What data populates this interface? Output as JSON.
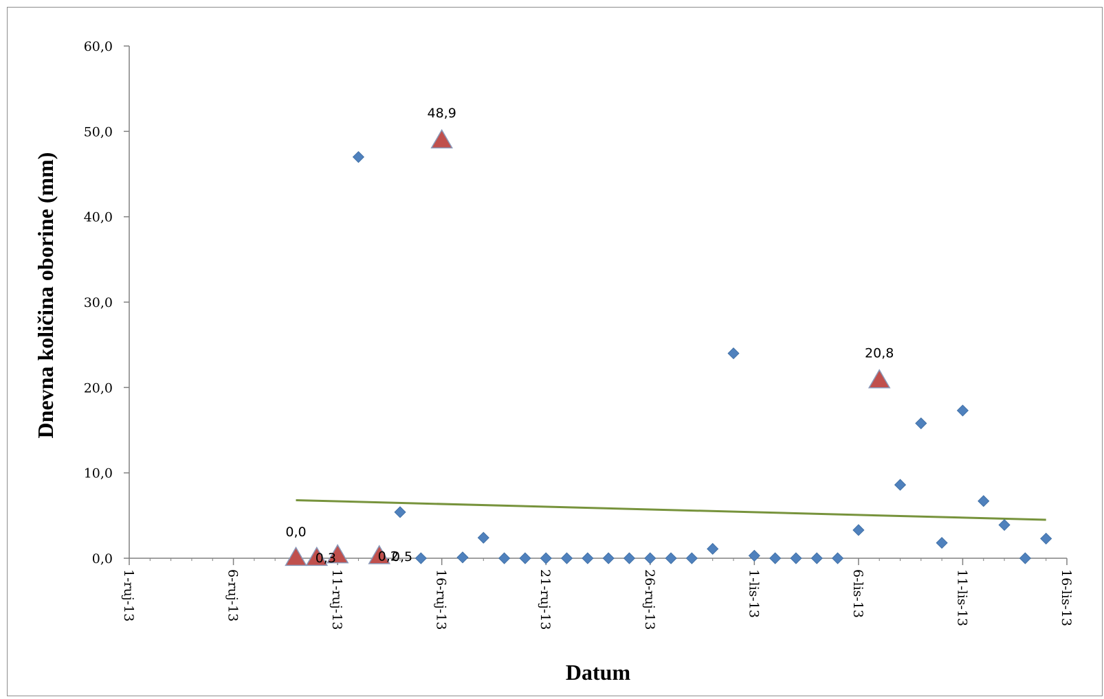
{
  "chart_data": {
    "type": "scatter",
    "xlabel": "Datum",
    "ylabel": "Dnevna količina oborine (mm)",
    "ylim": [
      0,
      60
    ],
    "yticks": [
      "0,0",
      "10,0",
      "20,0",
      "30,0",
      "40,0",
      "50,0",
      "60,0"
    ],
    "xlim": [
      "2013-09-01",
      "2013-10-16"
    ],
    "xticks": [
      {
        "date": "2013-09-01",
        "label": "1-ruj-13"
      },
      {
        "date": "2013-09-06",
        "label": "6-ruj-13"
      },
      {
        "date": "2013-09-11",
        "label": "11-ruj-13"
      },
      {
        "date": "2013-09-16",
        "label": "16-ruj-13"
      },
      {
        "date": "2013-09-21",
        "label": "21-ruj-13"
      },
      {
        "date": "2013-09-26",
        "label": "26-ruj-13"
      },
      {
        "date": "2013-10-01",
        "label": "1-lis-13"
      },
      {
        "date": "2013-10-06",
        "label": "6-lis-13"
      },
      {
        "date": "2013-10-11",
        "label": "11-lis-13"
      },
      {
        "date": "2013-10-16",
        "label": "16-lis-13"
      }
    ],
    "grid": false,
    "legend": "none",
    "series": [
      {
        "marker": "diamond",
        "color": "#4f81bd",
        "points": [
          [
            "2013-09-10",
            0.0
          ],
          [
            "2013-09-12",
            47.0
          ],
          [
            "2013-09-14",
            5.4
          ],
          [
            "2013-09-15",
            0.0
          ],
          [
            "2013-09-17",
            0.1
          ],
          [
            "2013-09-18",
            2.4
          ],
          [
            "2013-09-19",
            0.0
          ],
          [
            "2013-09-20",
            0.0
          ],
          [
            "2013-09-21",
            0.0
          ],
          [
            "2013-09-22",
            0.0
          ],
          [
            "2013-09-23",
            0.0
          ],
          [
            "2013-09-24",
            0.0
          ],
          [
            "2013-09-25",
            0.0
          ],
          [
            "2013-09-26",
            0.0
          ],
          [
            "2013-09-27",
            0.0
          ],
          [
            "2013-09-28",
            0.0
          ],
          [
            "2013-09-29",
            1.1
          ],
          [
            "2013-09-30",
            24.0
          ],
          [
            "2013-10-01",
            0.3
          ],
          [
            "2013-10-02",
            0.0
          ],
          [
            "2013-10-03",
            0.0
          ],
          [
            "2013-10-04",
            0.0
          ],
          [
            "2013-10-05",
            0.0
          ],
          [
            "2013-10-06",
            3.3
          ],
          [
            "2013-10-08",
            8.6
          ],
          [
            "2013-10-09",
            15.8
          ],
          [
            "2013-10-10",
            1.8
          ],
          [
            "2013-10-11",
            17.3
          ],
          [
            "2013-10-12",
            6.7
          ],
          [
            "2013-10-13",
            3.9
          ],
          [
            "2013-10-14",
            0.0
          ],
          [
            "2013-10-15",
            2.3
          ]
        ]
      },
      {
        "marker": "triangle",
        "color": "#c0504d",
        "points": [
          [
            "2013-09-09",
            0.0
          ],
          [
            "2013-09-10",
            0.0
          ],
          [
            "2013-09-11",
            0.3
          ],
          [
            "2013-09-13",
            0.2
          ],
          [
            "2013-09-16",
            48.9
          ],
          [
            "2013-10-07",
            20.8
          ]
        ]
      }
    ],
    "annotations": [
      {
        "text": "0,0",
        "x": "2013-09-09",
        "y": 0.0,
        "anchor": "above"
      },
      {
        "text": "0,3",
        "x": "2013-09-10",
        "y": 0.0,
        "anchor": "inline"
      },
      {
        "text": "0,2",
        "x": "2013-09-13",
        "y": 0.2,
        "anchor": "inline"
      },
      {
        "text": "0,5",
        "x": "2013-09-14",
        "y": 0.0,
        "anchor": "right"
      },
      {
        "text": "48,9",
        "x": "2013-09-16",
        "y": 48.9,
        "anchor": "above"
      },
      {
        "text": "20,8",
        "x": "2013-10-07",
        "y": 20.8,
        "anchor": "above"
      }
    ],
    "trendline": {
      "color": "#77933c",
      "start": [
        "2013-09-09",
        6.8
      ],
      "end": [
        "2013-10-15",
        4.5
      ]
    }
  }
}
